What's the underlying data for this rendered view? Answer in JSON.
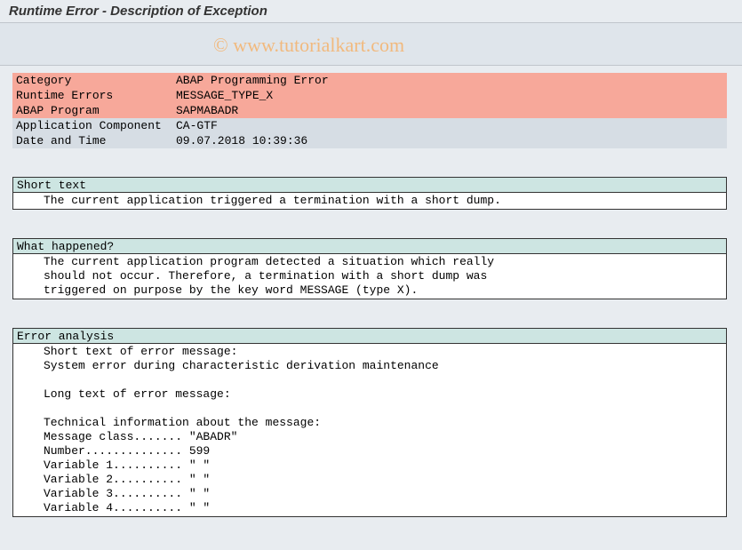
{
  "title": "Runtime Error - Description of Exception",
  "watermark": "© www.tutorialkart.com",
  "info_rows": [
    {
      "label": "Category",
      "value": "ABAP Programming Error",
      "cls": "row-red"
    },
    {
      "label": "Runtime Errors",
      "value": "MESSAGE_TYPE_X",
      "cls": "row-red"
    },
    {
      "label": "ABAP Program",
      "value": "SAPMABADR",
      "cls": "row-red"
    },
    {
      "label": "Application Component",
      "value": "CA-GTF",
      "cls": "row-grey"
    },
    {
      "label": "Date and Time",
      "value": "09.07.2018 10:39:36",
      "cls": "row-grey"
    }
  ],
  "sections": {
    "short_text": {
      "header": "Short text",
      "lines": [
        "The current application triggered a termination with a short dump."
      ]
    },
    "what_happened": {
      "header": "What happened?",
      "lines": [
        "The current application program detected a situation which really",
        "should not occur. Therefore, a termination with a short dump was",
        "triggered on purpose by the key word MESSAGE (type X)."
      ]
    },
    "error_analysis": {
      "header": "Error analysis",
      "lines": [
        "Short text of error message:",
        "System error during characteristic derivation maintenance",
        "",
        "Long text of error message:",
        "",
        "Technical information about the message:",
        "Message class....... \"ABADR\"",
        "Number.............. 599",
        "Variable 1.......... \" \"",
        "Variable 2.......... \" \"",
        "Variable 3.......... \" \"",
        "Variable 4.......... \" \""
      ]
    }
  }
}
